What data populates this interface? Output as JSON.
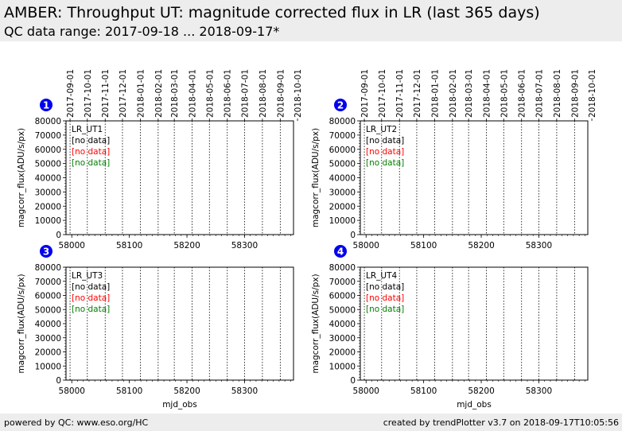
{
  "header": {
    "title": "AMBER: Throughput UT: magnitude corrected flux in LR (last 365 days)",
    "subtitle": "QC data range: 2017-09-18 ... 2018-09-17*"
  },
  "footer": {
    "left": "powered by QC: www.eso.org/HC",
    "right": "created by trendPlotter v3.7 on 2018-09-17T10:05:56"
  },
  "colors": {
    "no_data_black": "#000000",
    "no_data_red": "#ff0000",
    "no_data_green": "#008000",
    "badge": "#0000ee"
  },
  "chart_data": [
    {
      "type": "scatter",
      "panel_number": "1",
      "label": "LR_UT1",
      "series_status": [
        {
          "text": "[no data]",
          "color": "#000000"
        },
        {
          "text": "[no data]",
          "color": "#ff0000"
        },
        {
          "text": "[no data]",
          "color": "#008000"
        }
      ],
      "xlabel": "",
      "ylabel": "magcorr_flux(ADU/s/px)",
      "xlim": [
        57990,
        58385
      ],
      "ylim": [
        0,
        80000
      ],
      "x_ticks": [
        58000,
        58100,
        58200,
        58300
      ],
      "y_ticks": [
        0,
        10000,
        20000,
        30000,
        40000,
        50000,
        60000,
        70000,
        80000
      ],
      "top_date_ticks": [
        "2017-09-01",
        "2017-10-01",
        "2017-11-01",
        "2017-12-01",
        "2018-01-01",
        "2018-02-01",
        "2018-03-01",
        "2018-04-01",
        "2018-05-01",
        "2018-06-01",
        "2018-07-01",
        "2018-08-01",
        "2018-09-01",
        "2018-10-01"
      ],
      "top_date_mjd": [
        57997,
        58027,
        58058,
        58088,
        58119,
        58150,
        58178,
        58209,
        58239,
        58270,
        58300,
        58331,
        58362,
        58392
      ],
      "month_gridlines": true
    },
    {
      "type": "scatter",
      "panel_number": "2",
      "label": "LR_UT2",
      "series_status": [
        {
          "text": "[no data]",
          "color": "#000000"
        },
        {
          "text": "[no data]",
          "color": "#ff0000"
        },
        {
          "text": "[no data]",
          "color": "#008000"
        }
      ],
      "xlabel": "",
      "ylabel": "magcorr_flux(ADU/s/px)",
      "xlim": [
        57990,
        58385
      ],
      "ylim": [
        0,
        80000
      ],
      "x_ticks": [
        58000,
        58100,
        58200,
        58300
      ],
      "y_ticks": [
        0,
        10000,
        20000,
        30000,
        40000,
        50000,
        60000,
        70000,
        80000
      ],
      "top_date_ticks": [
        "2017-09-01",
        "2017-10-01",
        "2017-11-01",
        "2017-12-01",
        "2018-01-01",
        "2018-02-01",
        "2018-03-01",
        "2018-04-01",
        "2018-05-01",
        "2018-06-01",
        "2018-07-01",
        "2018-08-01",
        "2018-09-01",
        "2018-10-01"
      ],
      "top_date_mjd": [
        57997,
        58027,
        58058,
        58088,
        58119,
        58150,
        58178,
        58209,
        58239,
        58270,
        58300,
        58331,
        58362,
        58392
      ],
      "month_gridlines": true
    },
    {
      "type": "scatter",
      "panel_number": "3",
      "label": "LR_UT3",
      "series_status": [
        {
          "text": "[no data]",
          "color": "#000000"
        },
        {
          "text": "[no data]",
          "color": "#ff0000"
        },
        {
          "text": "[no data]",
          "color": "#008000"
        }
      ],
      "xlabel": "mjd_obs",
      "ylabel": "magcorr_flux(ADU/s/px)",
      "xlim": [
        57990,
        58385
      ],
      "ylim": [
        0,
        80000
      ],
      "x_ticks": [
        58000,
        58100,
        58200,
        58300
      ],
      "y_ticks": [
        0,
        10000,
        20000,
        30000,
        40000,
        50000,
        60000,
        70000,
        80000
      ],
      "top_date_ticks": [],
      "top_date_mjd": [
        57997,
        58027,
        58058,
        58088,
        58119,
        58150,
        58178,
        58209,
        58239,
        58270,
        58300,
        58331,
        58362,
        58392
      ],
      "month_gridlines": true
    },
    {
      "type": "scatter",
      "panel_number": "4",
      "label": "LR_UT4",
      "series_status": [
        {
          "text": "[no data]",
          "color": "#000000"
        },
        {
          "text": "[no data]",
          "color": "#ff0000"
        },
        {
          "text": "[no data]",
          "color": "#008000"
        }
      ],
      "xlabel": "mjd_obs",
      "ylabel": "magcorr_flux(ADU/s/px)",
      "xlim": [
        57990,
        58385
      ],
      "ylim": [
        0,
        80000
      ],
      "x_ticks": [
        58000,
        58100,
        58200,
        58300
      ],
      "y_ticks": [
        0,
        10000,
        20000,
        30000,
        40000,
        50000,
        60000,
        70000,
        80000
      ],
      "top_date_ticks": [],
      "top_date_mjd": [
        57997,
        58027,
        58058,
        58088,
        58119,
        58150,
        58178,
        58209,
        58239,
        58270,
        58300,
        58331,
        58362,
        58392
      ],
      "month_gridlines": true
    }
  ]
}
